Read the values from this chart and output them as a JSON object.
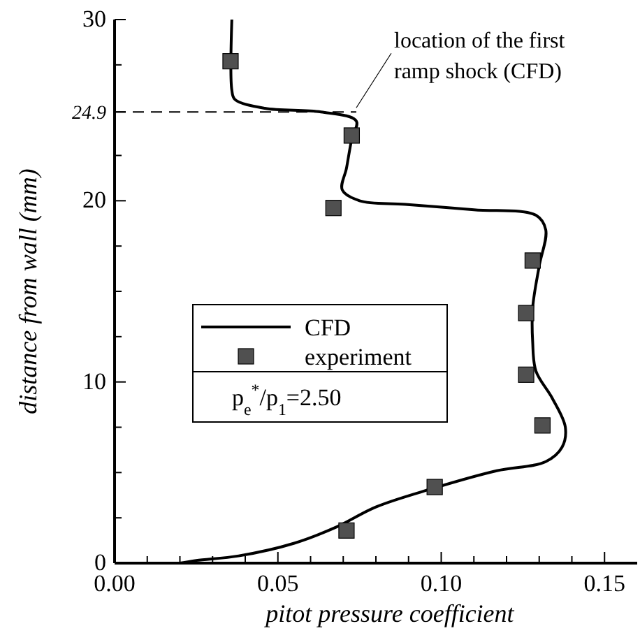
{
  "chart_data": {
    "type": "line",
    "xlabel": "pitot pressure coefficient",
    "ylabel": "distance from wall (mm)",
    "xlim": [
      0,
      0.16
    ],
    "ylim": [
      0,
      30
    ],
    "xticks": [
      {
        "value": 0,
        "label": "0.00"
      },
      {
        "value": 0.01,
        "label": null
      },
      {
        "value": 0.02,
        "label": null
      },
      {
        "value": 0.03,
        "label": null
      },
      {
        "value": 0.04,
        "label": null
      },
      {
        "value": 0.05,
        "label": "0.05"
      },
      {
        "value": 0.06,
        "label": null
      },
      {
        "value": 0.07,
        "label": null
      },
      {
        "value": 0.08,
        "label": null
      },
      {
        "value": 0.09,
        "label": null
      },
      {
        "value": 0.1,
        "label": "0.10"
      },
      {
        "value": 0.11,
        "label": null
      },
      {
        "value": 0.12,
        "label": null
      },
      {
        "value": 0.13,
        "label": null
      },
      {
        "value": 0.14,
        "label": null
      },
      {
        "value": 0.15,
        "label": "0.15"
      }
    ],
    "yticks": [
      0,
      {
        "value": 2.5,
        "label": null
      },
      {
        "value": 5,
        "label": null
      },
      {
        "value": 7.5,
        "label": null
      },
      10,
      {
        "value": 12.5,
        "label": null
      },
      {
        "value": 15,
        "label": null
      },
      {
        "value": 17.5,
        "label": null
      },
      20,
      {
        "value": 22.5,
        "label": null
      },
      {
        "value": 24.9,
        "label": "24.9"
      },
      {
        "value": 27.5,
        "label": null
      },
      30
    ],
    "series": [
      {
        "name": "CFD",
        "color": "#000000",
        "line_style": "solid",
        "marker": "none",
        "x": [
          0.02,
          0.025,
          0.038,
          0.055,
          0.068,
          0.08,
          0.097,
          0.117,
          0.132,
          0.137,
          0.138,
          0.134,
          0.129,
          0.128,
          0.128,
          0.13,
          0.132,
          0.129,
          0.11,
          0.089,
          0.075,
          0.0697,
          0.071,
          0.0726,
          0.074,
          0.0632,
          0.046,
          0.0368,
          0.0359,
          0.0359
        ],
        "values": [
          0,
          0.15,
          0.4,
          1.1,
          2.0,
          3.1,
          4.1,
          5.1,
          5.6,
          6.4,
          7.5,
          9.1,
          10.6,
          12.2,
          14.1,
          16.4,
          18.4,
          19.2,
          19.5,
          19.8,
          20.0,
          20.6,
          21.8,
          23.4,
          24.4,
          24.9,
          25.1,
          25.6,
          26.1,
          30
        ]
      },
      {
        "name": "experiment",
        "type": "scatter",
        "color": "#505050",
        "marker": "square",
        "x": [
          0.0355,
          0.0726,
          0.067,
          0.128,
          0.126,
          0.126,
          0.131,
          0.098,
          0.071
        ],
        "values": [
          27.7,
          23.6,
          19.6,
          16.7,
          13.8,
          10.4,
          7.6,
          4.2,
          1.8
        ]
      }
    ],
    "ref_lines": [
      {
        "axis": "y",
        "value": 24.9,
        "line_style": "dashed",
        "color": "#000000"
      }
    ],
    "annotations": [
      {
        "text": "location of the first ramp shock (CFD)",
        "x": 0.074,
        "y": 24.9
      },
      "p$_{e}$$^{*}$/p$_{1}$=2.50"
    ],
    "legend": "center",
    "grid": false
  }
}
